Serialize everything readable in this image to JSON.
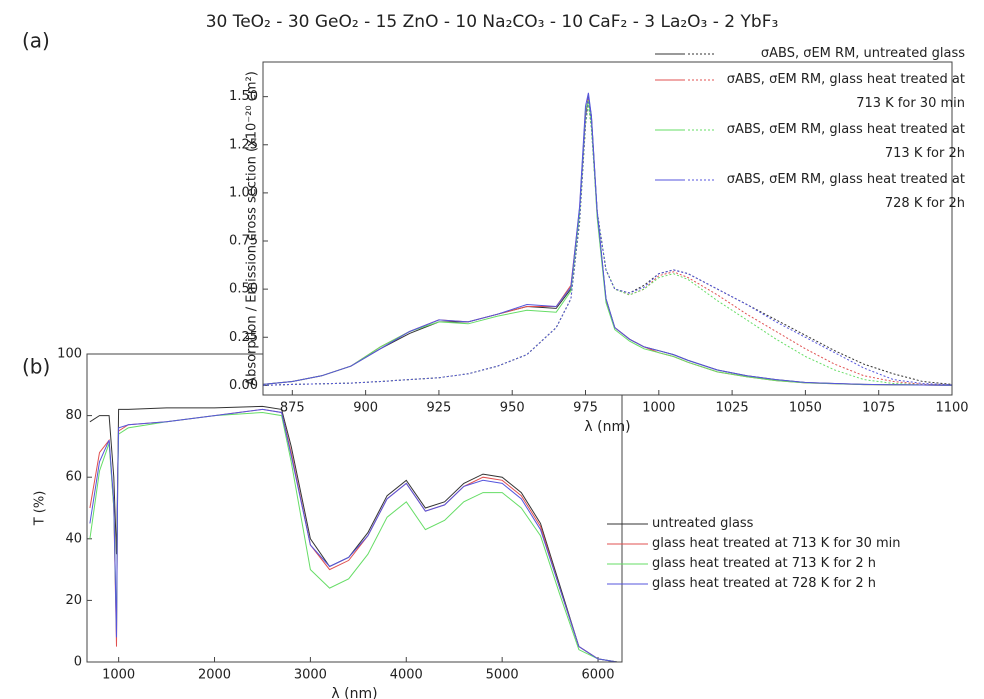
{
  "title": "30 TeO₂ - 30 GeO₂ - 15 ZnO - 10 Na₂CO₃ - 10 CaF₂ - 3 La₂O₃ - 2 YbF₃",
  "chart_data": [
    {
      "type": "line",
      "panel_label": "(a)",
      "xlabel": "λ (nm)",
      "ylabel": "Absorption / Emission cross section (x10⁻²⁰ cm²)",
      "x": [
        865,
        875,
        885,
        895,
        905,
        915,
        925,
        935,
        945,
        955,
        965,
        970,
        973,
        975,
        976,
        977,
        979,
        982,
        985,
        990,
        995,
        1000,
        1005,
        1010,
        1020,
        1030,
        1040,
        1050,
        1060,
        1070,
        1080,
        1090,
        1100
      ],
      "xlim": [
        865,
        1100
      ],
      "xticks": [
        875,
        900,
        925,
        950,
        975,
        1000,
        1025,
        1050,
        1075,
        1100
      ],
      "ylim": [
        -0.05,
        1.68
      ],
      "yticks": [
        {
          "value": 0,
          "label": "0.00"
        },
        {
          "value": 0.25,
          "label": "0.25"
        },
        {
          "value": 0.5,
          "label": "0.50"
        },
        {
          "value": 0.75,
          "label": "0.75"
        },
        {
          "value": 1,
          "label": "1.00"
        },
        {
          "value": 1.25,
          "label": "1.25"
        },
        {
          "value": 1.5,
          "label": "1.50"
        }
      ],
      "legend": "upper right",
      "emission_style": "dotted",
      "series": [
        {
          "name": "σABS, σEM RM, untreated glass",
          "color": "#333333",
          "values": [
            0.005,
            0.02,
            0.05,
            0.1,
            0.19,
            0.27,
            0.33,
            0.33,
            0.37,
            0.41,
            0.4,
            0.5,
            0.9,
            1.4,
            1.5,
            1.4,
            0.9,
            0.45,
            0.3,
            0.24,
            0.2,
            0.18,
            0.16,
            0.13,
            0.08,
            0.05,
            0.03,
            0.015,
            0.01,
            0.005,
            0.003,
            0.002,
            0.001
          ],
          "emission_values": [
            0,
            0.005,
            0.008,
            0.012,
            0.02,
            0.03,
            0.04,
            0.06,
            0.1,
            0.16,
            0.3,
            0.45,
            0.85,
            1.35,
            1.48,
            1.35,
            0.9,
            0.6,
            0.5,
            0.48,
            0.52,
            0.58,
            0.6,
            0.58,
            0.5,
            0.42,
            0.34,
            0.26,
            0.18,
            0.11,
            0.06,
            0.02,
            0.005
          ]
        },
        {
          "name": "σABS, σEM RM, glass heat treated at 713 K for 30 min",
          "color": "#e05050",
          "values": [
            0.005,
            0.02,
            0.05,
            0.1,
            0.2,
            0.28,
            0.34,
            0.33,
            0.37,
            0.41,
            0.41,
            0.52,
            0.92,
            1.42,
            1.49,
            1.38,
            0.88,
            0.44,
            0.3,
            0.24,
            0.2,
            0.17,
            0.15,
            0.12,
            0.07,
            0.045,
            0.025,
            0.013,
            0.008,
            0.004,
            0.003,
            0.002,
            0.001
          ],
          "emission_values": [
            0,
            0.005,
            0.008,
            0.012,
            0.02,
            0.03,
            0.04,
            0.06,
            0.1,
            0.16,
            0.3,
            0.45,
            0.85,
            1.35,
            1.47,
            1.34,
            0.9,
            0.6,
            0.5,
            0.47,
            0.5,
            0.57,
            0.59,
            0.56,
            0.47,
            0.37,
            0.28,
            0.19,
            0.11,
            0.05,
            0.02,
            0.005,
            0.002
          ]
        },
        {
          "name": "σABS, σEM RM, glass heat treated at 713 K for 2h",
          "color": "#66dd66",
          "values": [
            0.005,
            0.02,
            0.05,
            0.1,
            0.2,
            0.28,
            0.33,
            0.32,
            0.36,
            0.39,
            0.38,
            0.49,
            0.9,
            1.43,
            1.48,
            1.37,
            0.87,
            0.43,
            0.29,
            0.23,
            0.19,
            0.17,
            0.15,
            0.12,
            0.07,
            0.045,
            0.025,
            0.013,
            0.008,
            0.004,
            0.003,
            0.002,
            0.001
          ],
          "emission_values": [
            0,
            0.005,
            0.008,
            0.012,
            0.02,
            0.03,
            0.04,
            0.06,
            0.1,
            0.16,
            0.3,
            0.45,
            0.85,
            1.35,
            1.46,
            1.33,
            0.9,
            0.6,
            0.5,
            0.47,
            0.5,
            0.56,
            0.58,
            0.55,
            0.44,
            0.34,
            0.24,
            0.15,
            0.08,
            0.03,
            0.01,
            0.003,
            0.001
          ]
        },
        {
          "name": "σABS, σEM RM, glass heat treated at 728 K for 2h",
          "color": "#5555dd",
          "values": [
            0.005,
            0.02,
            0.05,
            0.1,
            0.19,
            0.28,
            0.34,
            0.33,
            0.37,
            0.42,
            0.41,
            0.51,
            0.93,
            1.45,
            1.52,
            1.4,
            0.9,
            0.45,
            0.3,
            0.24,
            0.2,
            0.18,
            0.16,
            0.13,
            0.08,
            0.05,
            0.03,
            0.015,
            0.01,
            0.005,
            0.003,
            0.002,
            0.001
          ],
          "emission_values": [
            0,
            0.005,
            0.008,
            0.012,
            0.02,
            0.03,
            0.04,
            0.06,
            0.1,
            0.16,
            0.3,
            0.45,
            0.86,
            1.37,
            1.5,
            1.36,
            0.9,
            0.6,
            0.5,
            0.48,
            0.51,
            0.58,
            0.6,
            0.58,
            0.5,
            0.42,
            0.33,
            0.25,
            0.17,
            0.09,
            0.03,
            0.01,
            0.003
          ]
        }
      ]
    },
    {
      "type": "line",
      "panel_label": "(b)",
      "xlabel": "λ (nm)",
      "ylabel": "T (%)",
      "x": [
        700,
        800,
        900,
        950,
        978,
        990,
        1000,
        1100,
        1500,
        2000,
        2500,
        2700,
        2800,
        3000,
        3200,
        3400,
        3600,
        3800,
        4000,
        4200,
        4400,
        4600,
        4800,
        5000,
        5200,
        5400,
        5600,
        5800,
        6000,
        6200
      ],
      "xlim": [
        670,
        6250
      ],
      "xticks": [
        1000,
        2000,
        3000,
        4000,
        5000,
        6000
      ],
      "ylim": [
        0,
        100
      ],
      "yticks": [
        0,
        20,
        40,
        60,
        80,
        100
      ],
      "legend": "lower right",
      "series": [
        {
          "name": "untreated glass",
          "color": "#333333",
          "values": [
            78,
            80,
            80,
            60,
            35,
            60,
            82,
            82,
            82.5,
            82.5,
            83,
            82,
            70,
            40,
            31,
            34,
            42,
            54,
            59,
            50,
            52,
            58,
            61,
            60,
            55,
            45,
            25,
            5,
            1,
            0
          ]
        },
        {
          "name": "glass heat treated at 713 K for 30 min",
          "color": "#e05050",
          "values": [
            50,
            68,
            72,
            50,
            5,
            60,
            75,
            77,
            78,
            80,
            82,
            81,
            68,
            38,
            30,
            33,
            41,
            53,
            58,
            49,
            51,
            57,
            60,
            59,
            54,
            44,
            24,
            5,
            1,
            0
          ]
        },
        {
          "name": "glass heat treated at 713 K for 2 h",
          "color": "#66dd66",
          "values": [
            40,
            62,
            71,
            50,
            10,
            58,
            74,
            76,
            78,
            80,
            81,
            80,
            65,
            30,
            24,
            27,
            35,
            47,
            52,
            43,
            46,
            52,
            55,
            55,
            50,
            41,
            22,
            4,
            1,
            0
          ]
        },
        {
          "name": "glass heat treated at 728 K for 2 h",
          "color": "#5555dd",
          "values": [
            45,
            65,
            72,
            52,
            8,
            60,
            76,
            77,
            78,
            80,
            82,
            81,
            67,
            38,
            31,
            34,
            41,
            53,
            58,
            49,
            51,
            57,
            59,
            58,
            53,
            43,
            24,
            5,
            1,
            0
          ]
        }
      ]
    }
  ]
}
